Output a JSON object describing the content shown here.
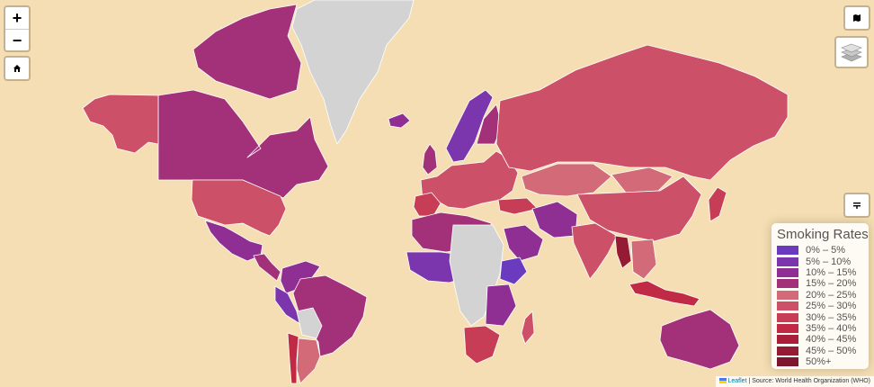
{
  "controls": {
    "zoom_in": "+",
    "zoom_out": "−",
    "home_icon": "home-icon",
    "basemap_icon": "map-icon",
    "layers_icon": "layers-icon",
    "filter_icon": "filter-icon"
  },
  "legend": {
    "title": "Smoking Rates",
    "items": [
      {
        "label": "0% – 5%",
        "color": "#6a3bbf"
      },
      {
        "label": "5% – 10%",
        "color": "#7b35ad"
      },
      {
        "label": "10% – 15%",
        "color": "#8f2e93"
      },
      {
        "label": "15% – 20%",
        "color": "#a2317a"
      },
      {
        "label": "20% – 25%",
        "color": "#d26a78"
      },
      {
        "label": "25% – 30%",
        "color": "#cc5068"
      },
      {
        "label": "30% – 35%",
        "color": "#c73d55"
      },
      {
        "label": "35% – 40%",
        "color": "#c02a44"
      },
      {
        "label": "40% – 45%",
        "color": "#a91f3a"
      },
      {
        "label": "45% – 50%",
        "color": "#951a33"
      },
      {
        "label": "50%+",
        "color": "#7d1530"
      }
    ]
  },
  "attribution": {
    "leaflet": "Leaflet",
    "source": " | Source: World Health Organization (WHO)"
  },
  "colors": {
    "ocean": "#f5deb3",
    "no_data": "#d3d3d3"
  }
}
